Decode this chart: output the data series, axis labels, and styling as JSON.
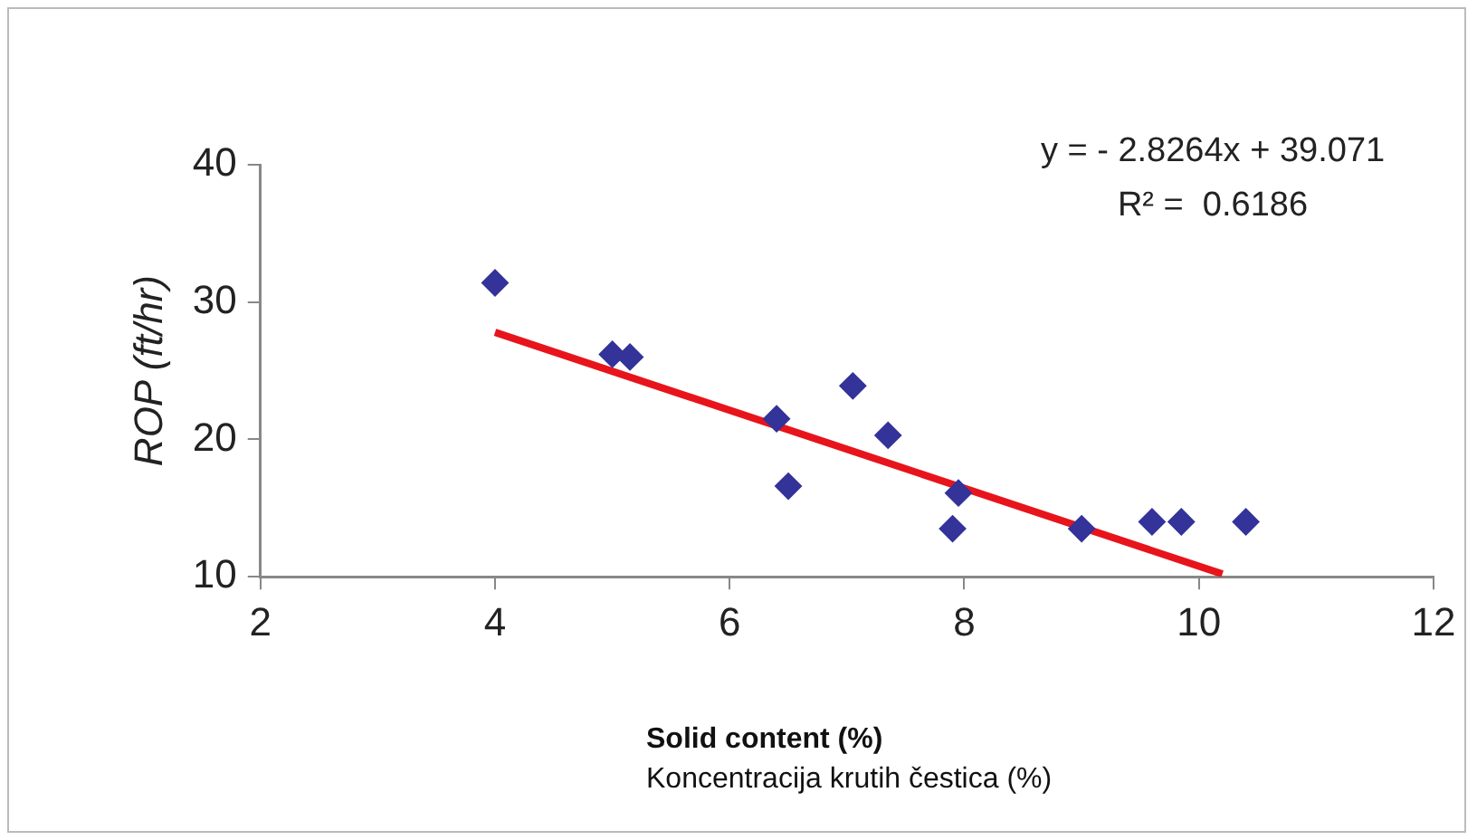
{
  "chart_data": {
    "type": "scatter",
    "xlabel": "Solid content (%)\nKoncentracija krutih čestica (%)",
    "ylabel": "ROP (ft/hr)",
    "xlim": [
      2,
      12
    ],
    "xticks": [
      2,
      4,
      6,
      8,
      10,
      12
    ],
    "ylim": [
      10,
      40
    ],
    "yticks": [
      10,
      20,
      30,
      40
    ],
    "grid": false,
    "legend": false,
    "annotations": [
      "y = - 2.8264x + 39.071",
      "R² =  0.6186"
    ],
    "series": [
      {
        "type": "scatter",
        "marker": "diamond",
        "color": "#333399",
        "x": [
          4.0,
          5.0,
          5.15,
          6.4,
          6.5,
          7.05,
          7.35,
          7.95,
          7.9,
          9.0,
          9.6,
          9.85,
          10.4
        ],
        "values": [
          31.4,
          26.2,
          26.0,
          21.5,
          16.6,
          23.9,
          20.3,
          16.1,
          13.5,
          13.5,
          14.0,
          14.0,
          14.0
        ]
      },
      {
        "type": "line",
        "color": "#e8141c",
        "x": [
          4.0,
          10.2
        ],
        "values": [
          27.8,
          10.2
        ]
      }
    ]
  }
}
